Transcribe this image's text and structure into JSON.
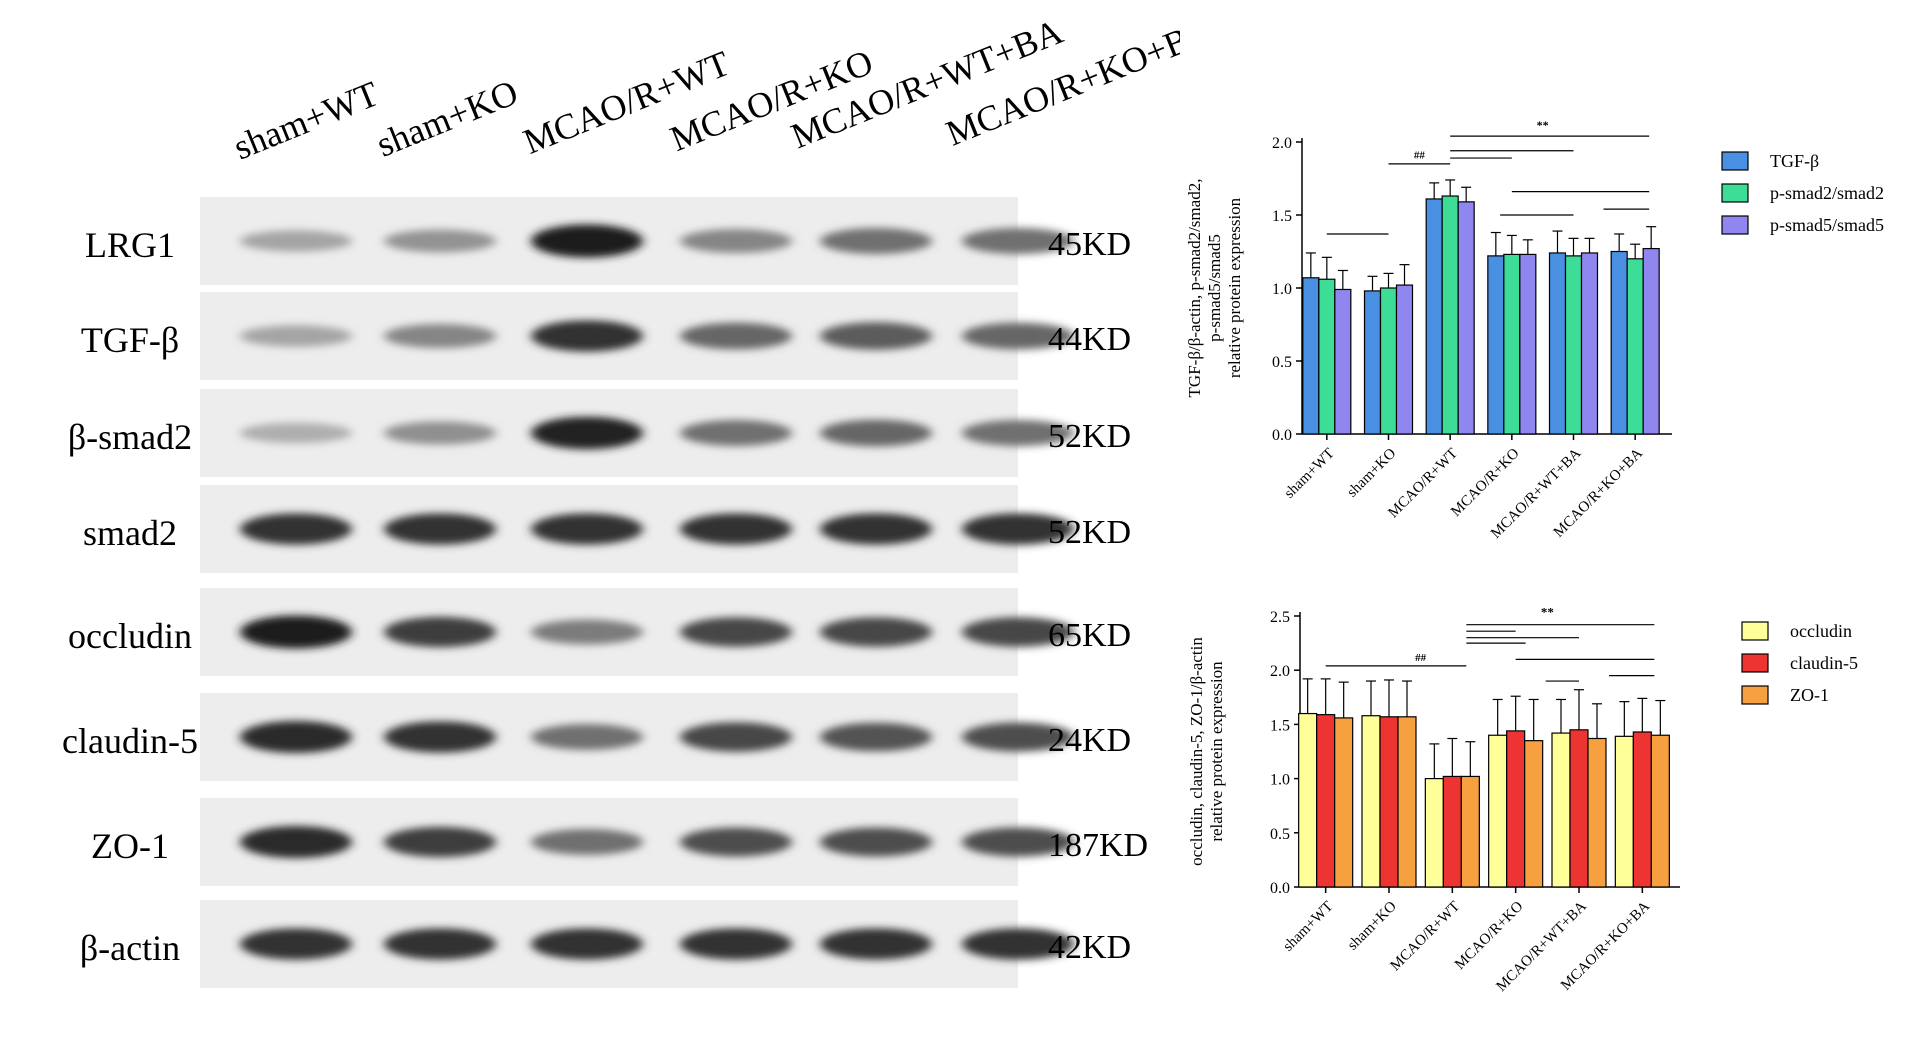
{
  "blot": {
    "lanes": [
      "sham+WT",
      "sham+KO",
      "MCAO/R+WT",
      "MCAO/R+KO",
      "MCAO/R+WT+BA",
      "MCAO/R+KO+BA"
    ],
    "rows": [
      {
        "label": "LRG1",
        "kd": "45KD",
        "intensity": [
          0.3,
          0.38,
          0.95,
          0.45,
          0.55,
          0.55
        ]
      },
      {
        "label": "TGF-β",
        "kd": "44KD",
        "intensity": [
          0.3,
          0.45,
          0.85,
          0.6,
          0.65,
          0.6
        ]
      },
      {
        "label": "β-smad2",
        "kd": "52KD",
        "intensity": [
          0.25,
          0.4,
          0.92,
          0.55,
          0.6,
          0.55
        ]
      },
      {
        "label": "smad2",
        "kd": "52KD",
        "intensity": [
          0.85,
          0.85,
          0.85,
          0.85,
          0.85,
          0.85
        ]
      },
      {
        "label": "occludin",
        "kd": "65KD",
        "intensity": [
          0.95,
          0.8,
          0.5,
          0.75,
          0.75,
          0.75
        ]
      },
      {
        "label": "claudin-5",
        "kd": "24KD",
        "intensity": [
          0.9,
          0.85,
          0.55,
          0.75,
          0.7,
          0.72
        ]
      },
      {
        "label": "ZO-1",
        "kd": "187KD",
        "intensity": [
          0.9,
          0.8,
          0.55,
          0.72,
          0.72,
          0.72
        ]
      },
      {
        "label": "β-actin",
        "kd": "42KD",
        "intensity": [
          0.85,
          0.85,
          0.85,
          0.85,
          0.85,
          0.85
        ]
      }
    ]
  },
  "chart_data": [
    {
      "type": "bar",
      "categories": [
        "sham+WT",
        "sham+KO",
        "MCAO/R+WT",
        "MCAO/R+KO",
        "MCAO/R+WT+BA",
        "MCAO/R+KO+BA"
      ],
      "ylabel_lines": [
        "TGF-β/β-actin, p-smad2/smad2,",
        "p-smad5/smad5",
        "relative protein expression"
      ],
      "ylim": [
        0,
        2.0
      ],
      "yticks": [
        "0.0",
        "0.5",
        "1.0",
        "1.5",
        "2.0"
      ],
      "legend_position": "right",
      "series": [
        {
          "name": "TGF-β",
          "color": "#4a90e2",
          "values": [
            1.07,
            0.98,
            1.61,
            1.22,
            1.24,
            1.25
          ],
          "errors": [
            0.17,
            0.1,
            0.11,
            0.16,
            0.15,
            0.12
          ]
        },
        {
          "name": "p-smad2/smad2",
          "color": "#3ddc97",
          "values": [
            1.06,
            1.0,
            1.63,
            1.23,
            1.22,
            1.2
          ],
          "errors": [
            0.15,
            0.1,
            0.11,
            0.13,
            0.12,
            0.1
          ]
        },
        {
          "name": "p-smad5/smad5",
          "color": "#8f86f0",
          "values": [
            0.99,
            1.02,
            1.59,
            1.23,
            1.24,
            1.27
          ],
          "errors": [
            0.13,
            0.14,
            0.1,
            0.1,
            0.1,
            0.15
          ]
        }
      ],
      "annotations": [
        "##",
        "**"
      ]
    },
    {
      "type": "bar",
      "categories": [
        "sham+WT",
        "sham+KO",
        "MCAO/R+WT",
        "MCAO/R+KO",
        "MCAO/R+WT+BA",
        "MCAO/R+KO+BA"
      ],
      "ylabel_lines": [
        "occludin, claudin-5, ZO-1/β-actin",
        "relative protein expression"
      ],
      "ylim": [
        0,
        2.5
      ],
      "yticks": [
        "0.0",
        "0.5",
        "1.0",
        "1.5",
        "2.0",
        "2.5"
      ],
      "legend_position": "right",
      "series": [
        {
          "name": "occludin",
          "color": "#ffff99",
          "values": [
            1.6,
            1.58,
            1.0,
            1.4,
            1.42,
            1.39
          ],
          "errors": [
            0.32,
            0.32,
            0.32,
            0.33,
            0.31,
            0.32
          ]
        },
        {
          "name": "claudin-5",
          "color": "#ee3333",
          "values": [
            1.59,
            1.57,
            1.02,
            1.44,
            1.45,
            1.43
          ],
          "errors": [
            0.33,
            0.34,
            0.35,
            0.32,
            0.37,
            0.31
          ]
        },
        {
          "name": "ZO-1",
          "color": "#f7a040",
          "values": [
            1.56,
            1.57,
            1.02,
            1.35,
            1.37,
            1.4
          ],
          "errors": [
            0.33,
            0.33,
            0.32,
            0.38,
            0.32,
            0.32
          ]
        }
      ],
      "annotations": [
        "##",
        "**"
      ]
    }
  ]
}
